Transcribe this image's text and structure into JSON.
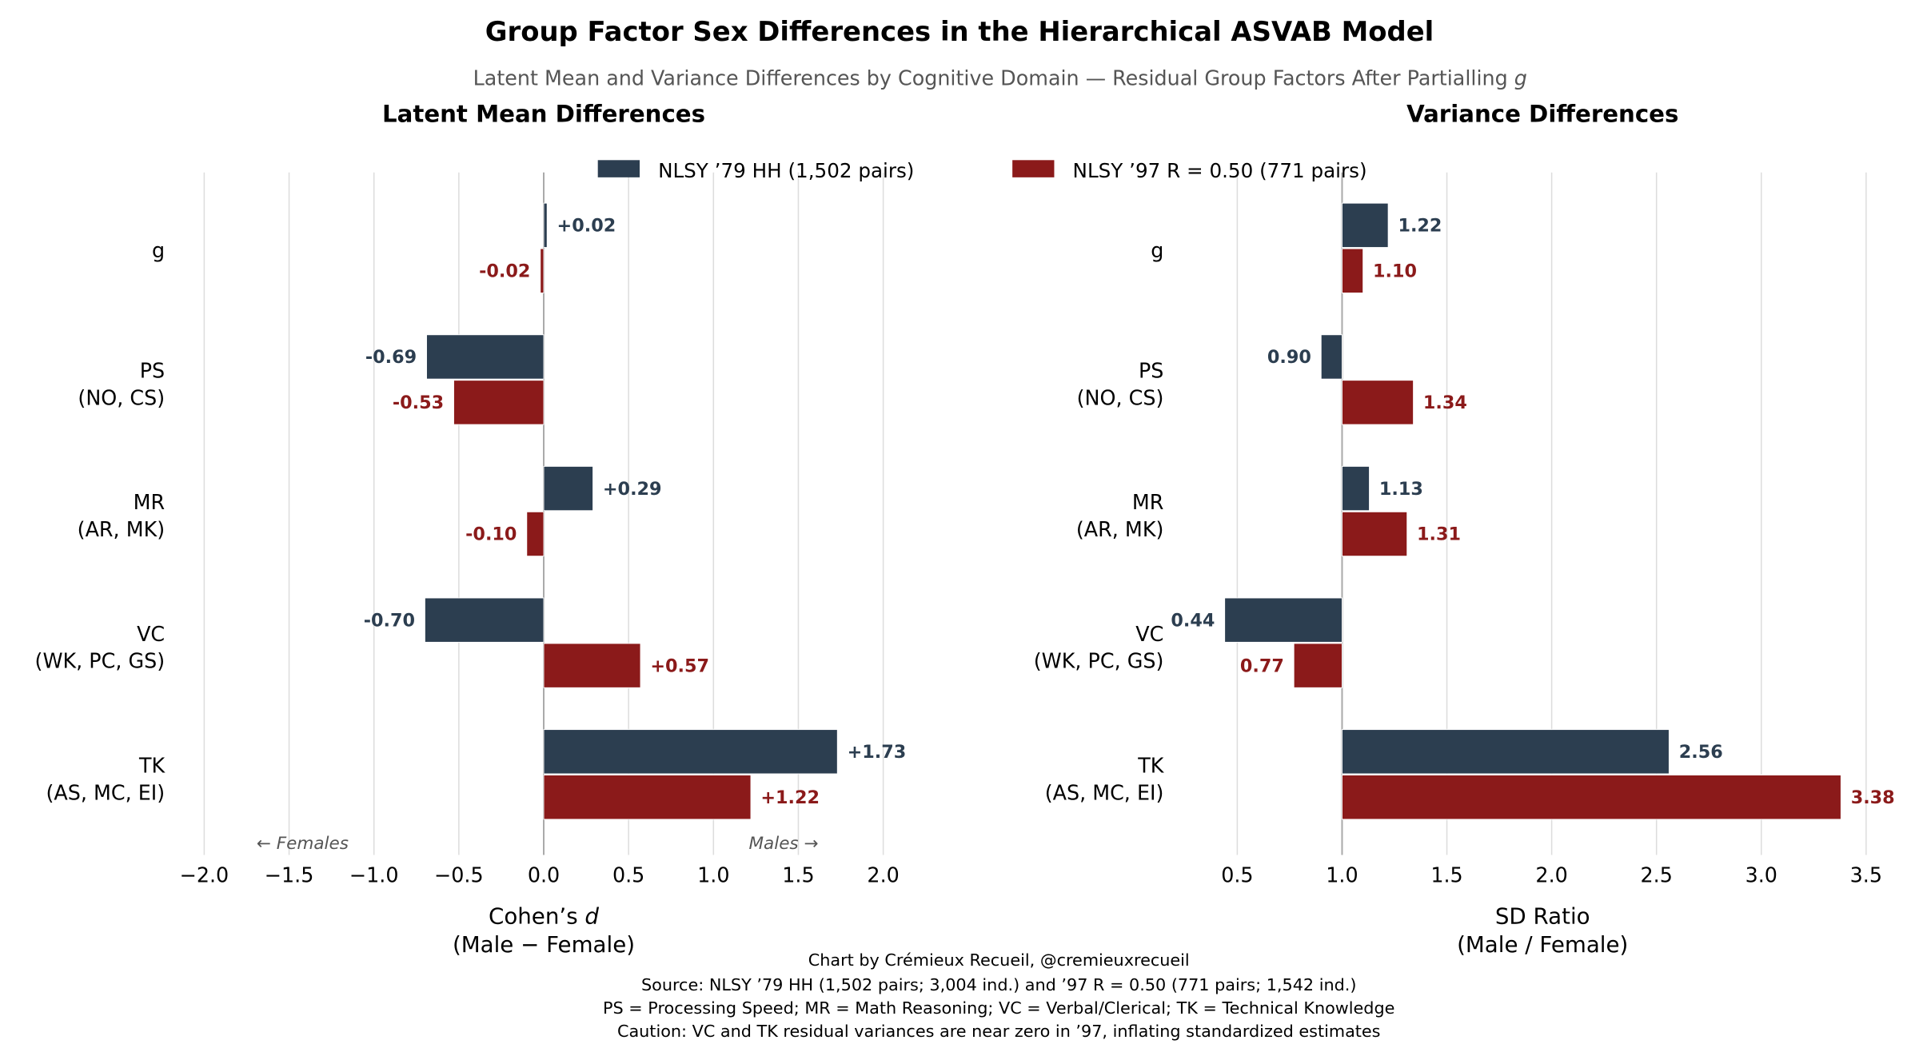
{
  "title": "Group Factor Sex Differences in the Hierarchical ASVAB Model",
  "subtitle": "Latent Mean and Variance Differences by Cognitive Domain — Residual Group Factors After Partialling ",
  "subtitle_italic": "g",
  "legend": [
    "NLSY ’79 HH (1,502 pairs)",
    "NLSY ’97 R = 0.50 (771 pairs)"
  ],
  "colors": {
    "s79": "#2c3e50",
    "s97": "#8b1a1a",
    "grid": "#dddddd",
    "ref": "#aaaaaa"
  },
  "footer": [
    "Chart by Crémieux Recueil, @cremieuxrecueil",
    "Source: NLSY ’79 HH (1,502 pairs; 3,004 ind.) and ’97 R = 0.50 (771 pairs; 1,542 ind.)",
    "PS = Processing Speed; MR = Math Reasoning; VC = Verbal/Clerical; TK = Technical Knowledge",
    "Caution: VC and TK residual variances are near zero in ’97, inflating standardized estimates"
  ],
  "chart_data": [
    {
      "type": "bar",
      "orientation": "horizontal",
      "title": "Latent Mean Differences",
      "categories": [
        [
          "g"
        ],
        [
          "PS",
          "(NO, CS)"
        ],
        [
          "MR",
          "(AR, MK)"
        ],
        [
          "VC",
          "(WK, PC, GS)"
        ],
        [
          "TK",
          "(AS, MC, EI)"
        ]
      ],
      "series": [
        {
          "name": "NLSY ’79 HH (1,502 pairs)",
          "values": [
            0.02,
            -0.69,
            0.29,
            -0.7,
            1.73
          ],
          "labels": [
            "+0.02",
            "-0.69",
            "+0.29",
            "-0.70",
            "+1.73"
          ]
        },
        {
          "name": "NLSY ’97 R = 0.50 (771 pairs)",
          "values": [
            -0.02,
            -0.53,
            -0.1,
            0.57,
            1.22
          ],
          "labels": [
            "-0.02",
            "-0.53",
            "-0.10",
            "+0.57",
            "+1.22"
          ]
        }
      ],
      "baseline": 0,
      "xlabel": [
        "Cohen’s d",
        "(Male − Female)"
      ],
      "xlim": [
        -2.2,
        2.2
      ],
      "xticks": [
        -2.0,
        -1.5,
        -1.0,
        -0.5,
        0.0,
        0.5,
        1.0,
        1.5,
        2.0
      ],
      "xtick_labels": [
        "−2.0",
        "−1.5",
        "−1.0",
        "−0.5",
        "0.0",
        "0.5",
        "1.0",
        "1.5",
        "2.0"
      ],
      "annotations": [
        "← Females",
        "Males →"
      ],
      "grid": true
    },
    {
      "type": "bar",
      "orientation": "horizontal",
      "title": "Variance Differences",
      "categories": [
        [
          "g"
        ],
        [
          "PS",
          "(NO, CS)"
        ],
        [
          "MR",
          "(AR, MK)"
        ],
        [
          "VC",
          "(WK, PC, GS)"
        ],
        [
          "TK",
          "(AS, MC, EI)"
        ]
      ],
      "series": [
        {
          "name": "NLSY ’79 HH (1,502 pairs)",
          "values": [
            1.22,
            0.9,
            1.13,
            0.44,
            2.56
          ],
          "labels": [
            "1.22",
            "0.90",
            "1.13",
            "0.44",
            "2.56"
          ]
        },
        {
          "name": "NLSY ’97 R = 0.50 (771 pairs)",
          "values": [
            1.1,
            1.34,
            1.31,
            0.77,
            3.38
          ],
          "labels": [
            "1.10",
            "1.34",
            "1.31",
            "0.77",
            "3.38"
          ]
        }
      ],
      "baseline": 1.0,
      "xlabel": [
        "SD Ratio",
        "(Male / Female)"
      ],
      "xlim": [
        0.4,
        3.55
      ],
      "xticks": [
        0.5,
        1.0,
        1.5,
        2.0,
        2.5,
        3.0,
        3.5
      ],
      "xtick_labels": [
        "0.5",
        "1.0",
        "1.5",
        "2.0",
        "2.5",
        "3.0",
        "3.5"
      ],
      "grid": true
    }
  ]
}
